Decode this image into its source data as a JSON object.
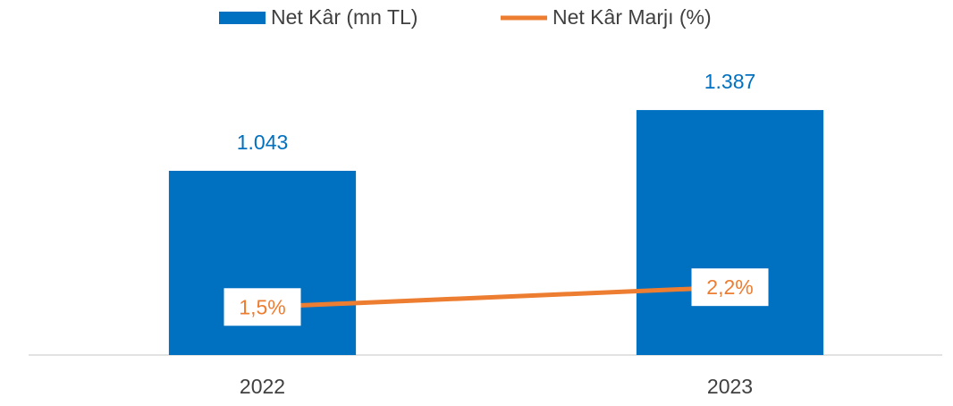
{
  "chart_data": {
    "type": "bar-line",
    "categories": [
      "2022",
      "2023"
    ],
    "series": [
      {
        "name": "Net Kâr (mn TL)",
        "type": "bar",
        "color": "#0070c0",
        "values": [
          1043,
          1387
        ],
        "value_labels": [
          "1.043",
          "1.387"
        ]
      },
      {
        "name": "Net Kâr Marjı (%)",
        "type": "line",
        "axis": "y2",
        "color": "#ed7d31",
        "values": [
          1.5,
          2.2
        ],
        "value_labels": [
          "1,5%",
          "2,2%"
        ]
      }
    ],
    "ylim": [
      0,
      1600
    ],
    "y2lim": [
      -0.2,
      9.8
    ],
    "legend": "top"
  }
}
